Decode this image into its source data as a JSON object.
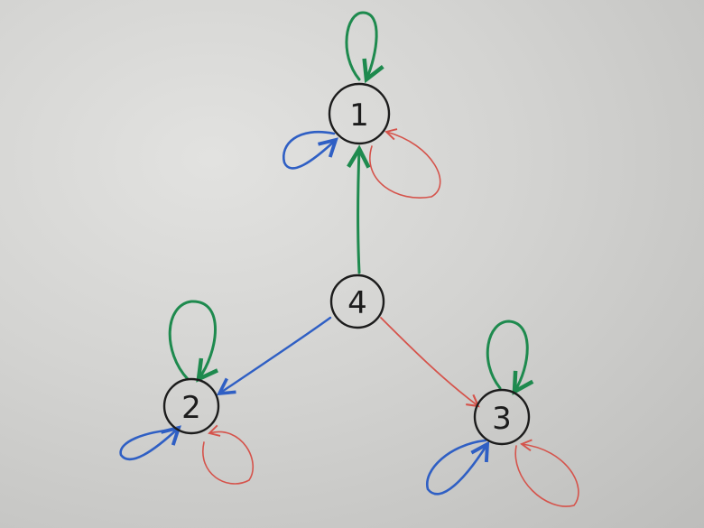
{
  "colors": {
    "green": "#1e8a4e",
    "blue": "#2f5fc4",
    "red": "#d5534b",
    "ink": "#1c1c1c"
  },
  "nodes": [
    {
      "id": "n1",
      "label": "1"
    },
    {
      "id": "n2",
      "label": "2"
    },
    {
      "id": "n3",
      "label": "3"
    },
    {
      "id": "n4",
      "label": "4"
    }
  ],
  "edges": [
    {
      "from": "4",
      "to": "1",
      "color": "green"
    },
    {
      "from": "4",
      "to": "2",
      "color": "blue"
    },
    {
      "from": "4",
      "to": "3",
      "color": "red"
    },
    {
      "from": "1",
      "to": "1",
      "color": "green"
    },
    {
      "from": "1",
      "to": "1",
      "color": "blue"
    },
    {
      "from": "1",
      "to": "1",
      "color": "red"
    },
    {
      "from": "2",
      "to": "2",
      "color": "green"
    },
    {
      "from": "2",
      "to": "2",
      "color": "blue"
    },
    {
      "from": "2",
      "to": "2",
      "color": "red"
    },
    {
      "from": "3",
      "to": "3",
      "color": "green"
    },
    {
      "from": "3",
      "to": "3",
      "color": "blue"
    },
    {
      "from": "3",
      "to": "3",
      "color": "red"
    }
  ]
}
